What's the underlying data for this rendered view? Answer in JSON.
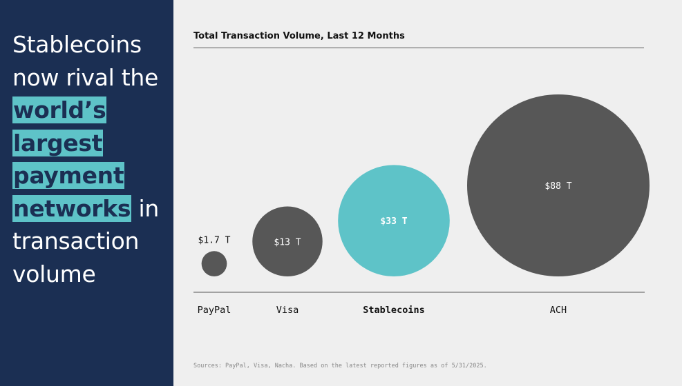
{
  "headline": {
    "part1": "Stablecoins now rival the ",
    "highlight1": "world’s",
    "highlight2": "largest",
    "highlight3": "payment",
    "highlight4": "networks",
    "part2": " in transaction volume"
  },
  "source_note": "Sources: PayPal, Visa, Nacha. Based on the latest reported figures as of 5/31/2025.",
  "colors": {
    "panel": "#1b2f53",
    "accent": "#5ec3c8",
    "bubble": "#575757",
    "background": "#efefef"
  },
  "chart_data": {
    "type": "bubble",
    "title": "Total Transaction Volume, Last 12 Months",
    "unit": "T",
    "categories": [
      "PayPal",
      "Visa",
      "Stablecoins",
      "ACH"
    ],
    "values": [
      1.7,
      13,
      33,
      88
    ],
    "value_labels": [
      "$1.7 T",
      "$13 T",
      "$33 T",
      "$88 T"
    ],
    "highlighted": "Stablecoins"
  }
}
